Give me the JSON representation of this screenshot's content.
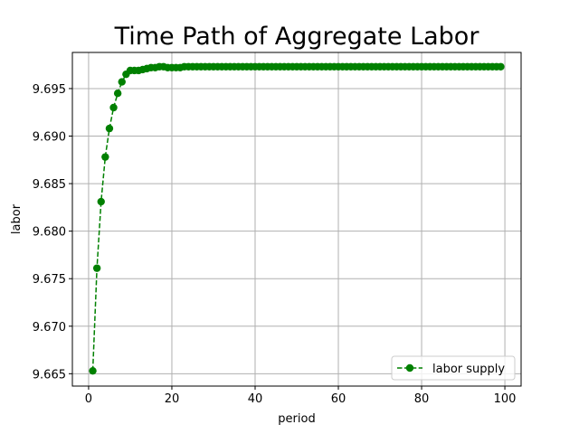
{
  "chart_data": {
    "type": "line",
    "title": "Time Path of Aggregate Labor",
    "xlabel": "period",
    "ylabel": "labor",
    "xlim": [
      -3.9,
      103.9
    ],
    "ylim": [
      9.6637,
      9.6988
    ],
    "xticks": [
      0,
      20,
      40,
      60,
      80,
      100
    ],
    "yticks": [
      9.665,
      9.67,
      9.675,
      9.68,
      9.685,
      9.69,
      9.695
    ],
    "ytick_labels": [
      "9.665",
      "9.670",
      "9.675",
      "9.680",
      "9.685",
      "9.690",
      "9.695"
    ],
    "grid": true,
    "legend_position": "lower right",
    "color": "#008000",
    "line_style": "dashed",
    "marker": "circle",
    "series": [
      {
        "name": "labor supply",
        "x": [
          1,
          2,
          3,
          4,
          5,
          6,
          7,
          8,
          9,
          10,
          11,
          12,
          13,
          14,
          15,
          16,
          17,
          18,
          19,
          20,
          21,
          22,
          23,
          24,
          25,
          26,
          27,
          28,
          29,
          30,
          31,
          32,
          33,
          34,
          35,
          36,
          37,
          38,
          39,
          40,
          41,
          42,
          43,
          44,
          45,
          46,
          47,
          48,
          49,
          50,
          51,
          52,
          53,
          54,
          55,
          56,
          57,
          58,
          59,
          60,
          61,
          62,
          63,
          64,
          65,
          66,
          67,
          68,
          69,
          70,
          71,
          72,
          73,
          74,
          75,
          76,
          77,
          78,
          79,
          80,
          81,
          82,
          83,
          84,
          85,
          86,
          87,
          88,
          89,
          90,
          91,
          92,
          93,
          94,
          95,
          96,
          97,
          98,
          99
        ],
        "y": [
          9.6653,
          9.6761,
          9.6831,
          9.6878,
          9.6908,
          9.693,
          9.6945,
          9.6957,
          9.6965,
          9.6969,
          9.6969,
          9.6969,
          9.697,
          9.6971,
          9.6972,
          9.6972,
          9.6973,
          9.6973,
          9.6972,
          9.6972,
          9.6972,
          9.6972,
          9.6973,
          9.6973,
          9.6973,
          9.6973,
          9.6973,
          9.6973,
          9.6973,
          9.6973,
          9.6973,
          9.6973,
          9.6973,
          9.6973,
          9.6973,
          9.6973,
          9.6973,
          9.6973,
          9.6973,
          9.6973,
          9.6973,
          9.6973,
          9.6973,
          9.6973,
          9.6973,
          9.6973,
          9.6973,
          9.6973,
          9.6973,
          9.6973,
          9.6973,
          9.6973,
          9.6973,
          9.6973,
          9.6973,
          9.6973,
          9.6973,
          9.6973,
          9.6973,
          9.6973,
          9.6973,
          9.6973,
          9.6973,
          9.6973,
          9.6973,
          9.6973,
          9.6973,
          9.6973,
          9.6973,
          9.6973,
          9.6973,
          9.6973,
          9.6973,
          9.6973,
          9.6973,
          9.6973,
          9.6973,
          9.6973,
          9.6973,
          9.6973,
          9.6973,
          9.6973,
          9.6973,
          9.6973,
          9.6973,
          9.6973,
          9.6973,
          9.6973,
          9.6973,
          9.6973,
          9.6973,
          9.6973,
          9.6973,
          9.6973,
          9.6973,
          9.6973,
          9.6973,
          9.6973,
          9.6973
        ]
      }
    ]
  }
}
